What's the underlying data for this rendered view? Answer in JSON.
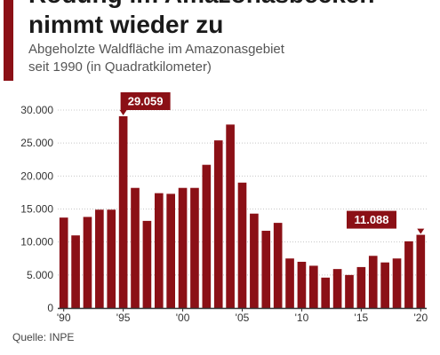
{
  "header": {
    "title_line1": "Rodung im Amazonasbecken",
    "title_line2": "nimmt wieder zu",
    "subtitle_line1": "Abgeholzte Waldfläche im Amazonasgebiet",
    "subtitle_line2": "seit 1990 (in Quadratkilometer)"
  },
  "footer": {
    "source": "Quelle: INPE"
  },
  "colors": {
    "accent": "#8b1016",
    "bar": "#8b1016",
    "grid": "#c8c8c8",
    "axis": "#333333"
  },
  "chart_data": {
    "type": "bar",
    "categories": [
      "1990",
      "1991",
      "1992",
      "1993",
      "1994",
      "1995",
      "1996",
      "1997",
      "1998",
      "1999",
      "2000",
      "2001",
      "2002",
      "2003",
      "2004",
      "2005",
      "2006",
      "2007",
      "2008",
      "2009",
      "2010",
      "2011",
      "2012",
      "2013",
      "2014",
      "2015",
      "2016",
      "2017",
      "2018",
      "2019",
      "2020"
    ],
    "values": [
      13700,
      11000,
      13800,
      14900,
      14900,
      29059,
      18200,
      13200,
      17400,
      17300,
      18200,
      18200,
      21700,
      25400,
      27800,
      19000,
      14300,
      11700,
      12900,
      7500,
      7000,
      6400,
      4600,
      5900,
      5000,
      6200,
      7900,
      6900,
      7500,
      10100,
      11088
    ],
    "x_tick_labels": [
      {
        "index": 0,
        "label": "'90"
      },
      {
        "index": 5,
        "label": "'95"
      },
      {
        "index": 10,
        "label": "'00"
      },
      {
        "index": 15,
        "label": "'05"
      },
      {
        "index": 20,
        "label": "'10"
      },
      {
        "index": 25,
        "label": "'15"
      },
      {
        "index": 30,
        "label": "'20"
      }
    ],
    "y_ticks": [
      0,
      5000,
      10000,
      15000,
      20000,
      25000,
      30000
    ],
    "y_tick_labels": [
      "0",
      "5.000",
      "10.000",
      "15.000",
      "20.000",
      "25.000",
      "30.000"
    ],
    "ylim": [
      0,
      30000
    ],
    "grid": true,
    "legend": "none",
    "annotations": [
      {
        "index": 5,
        "label": "29.059"
      },
      {
        "index": 30,
        "label": "11.088"
      }
    ]
  }
}
